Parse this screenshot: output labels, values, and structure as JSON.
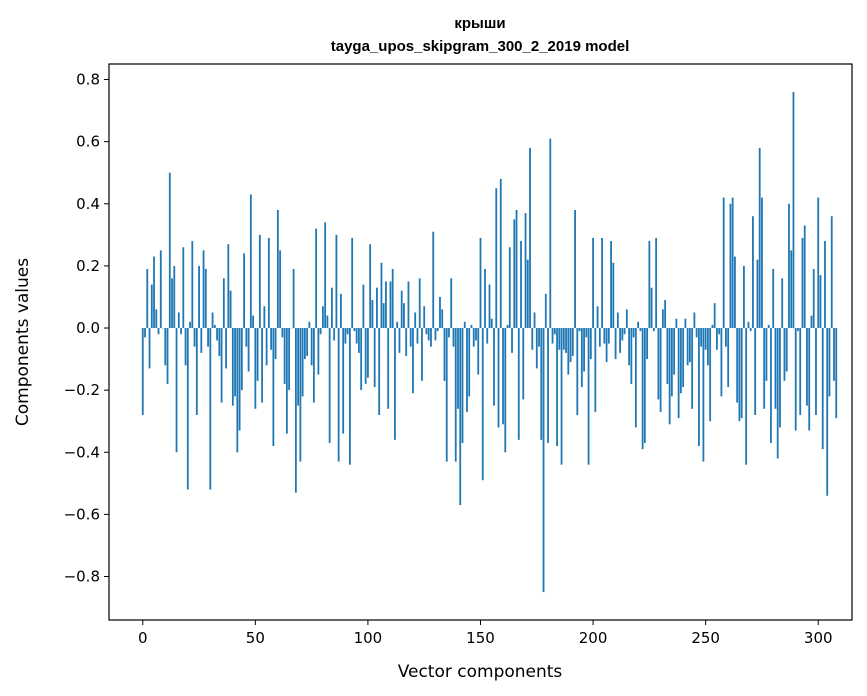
{
  "chart_data": {
    "type": "bar",
    "title": "крыши",
    "subtitle": "tayga_upos_skipgram_300_2_2019 model",
    "xlabel": "Vector components",
    "ylabel": "Components values",
    "xlim": [
      -15,
      315
    ],
    "ylim": [
      -0.94,
      0.85
    ],
    "xticks": [
      0,
      50,
      100,
      150,
      200,
      250,
      300
    ],
    "yticks": [
      -0.8,
      -0.6,
      -0.4,
      -0.2,
      0.0,
      0.2,
      0.4,
      0.6,
      0.8
    ],
    "ytick_labels": [
      "−0.8",
      "−0.6",
      "−0.4",
      "−0.2",
      "0.0",
      "0.2",
      "0.4",
      "0.6",
      "0.8"
    ],
    "color": "#1f77b4",
    "grid": false,
    "values": [
      -0.28,
      -0.03,
      0.19,
      -0.13,
      0.14,
      0.23,
      0.06,
      -0.02,
      0.25,
      0.0,
      -0.12,
      -0.18,
      0.5,
      0.16,
      0.2,
      -0.4,
      0.05,
      -0.02,
      0.26,
      -0.12,
      -0.52,
      0.02,
      0.28,
      -0.06,
      -0.28,
      0.2,
      -0.08,
      0.25,
      0.19,
      -0.06,
      -0.52,
      0.05,
      0.01,
      -0.04,
      -0.09,
      -0.24,
      0.16,
      -0.13,
      0.27,
      0.12,
      -0.25,
      -0.22,
      -0.4,
      -0.33,
      -0.2,
      0.24,
      -0.06,
      -0.14,
      0.43,
      0.04,
      -0.26,
      -0.17,
      0.3,
      -0.24,
      0.07,
      -0.12,
      0.29,
      -0.07,
      -0.38,
      -0.1,
      0.38,
      0.25,
      -0.03,
      -0.18,
      -0.34,
      -0.2,
      0.0,
      0.19,
      -0.53,
      -0.25,
      -0.43,
      -0.22,
      -0.1,
      -0.09,
      0.02,
      -0.12,
      -0.24,
      0.32,
      -0.15,
      -0.02,
      0.07,
      0.34,
      0.04,
      -0.37,
      0.13,
      -0.04,
      0.3,
      -0.43,
      0.11,
      -0.34,
      -0.05,
      -0.02,
      -0.44,
      0.29,
      -0.01,
      -0.05,
      -0.08,
      -0.2,
      0.14,
      -0.18,
      -0.16,
      0.27,
      0.09,
      -0.19,
      0.13,
      -0.28,
      0.21,
      0.08,
      0.15,
      -0.26,
      0.15,
      0.19,
      -0.36,
      0.02,
      -0.08,
      0.12,
      0.08,
      -0.09,
      0.15,
      -0.06,
      -0.21,
      0.05,
      -0.05,
      0.16,
      -0.17,
      0.07,
      -0.02,
      -0.04,
      -0.06,
      0.31,
      -0.04,
      -0.01,
      0.1,
      0.06,
      -0.17,
      -0.43,
      -0.03,
      0.16,
      -0.06,
      -0.43,
      -0.26,
      -0.57,
      -0.37,
      0.02,
      -0.27,
      -0.22,
      0.01,
      -0.06,
      -0.04,
      -0.15,
      0.29,
      -0.49,
      0.19,
      -0.05,
      0.14,
      0.03,
      -0.25,
      0.45,
      -0.32,
      0.48,
      -0.31,
      -0.4,
      0.01,
      0.26,
      -0.08,
      0.35,
      0.38,
      -0.36,
      0.28,
      -0.23,
      0.37,
      0.22,
      0.58,
      -0.07,
      0.05,
      -0.13,
      -0.06,
      -0.36,
      -0.85,
      0.11,
      -0.37,
      0.61,
      -0.05,
      -0.02,
      -0.38,
      -0.07,
      -0.44,
      -0.07,
      -0.08,
      -0.15,
      -0.11,
      -0.09,
      0.38,
      -0.28,
      -0.01,
      -0.19,
      -0.14,
      -0.03,
      -0.44,
      -0.1,
      0.29,
      -0.27,
      0.07,
      -0.06,
      0.29,
      -0.05,
      -0.11,
      -0.05,
      0.28,
      0.21,
      -0.1,
      0.05,
      -0.08,
      -0.04,
      -0.02,
      0.06,
      -0.12,
      -0.18,
      -0.03,
      -0.32,
      0.02,
      -0.01,
      -0.39,
      -0.37,
      -0.1,
      0.28,
      0.13,
      -0.01,
      0.29,
      -0.23,
      -0.27,
      0.06,
      0.09,
      -0.18,
      -0.31,
      -0.22,
      -0.15,
      0.03,
      -0.29,
      -0.21,
      -0.19,
      0.03,
      -0.12,
      -0.11,
      -0.26,
      0.05,
      -0.03,
      -0.38,
      -0.06,
      -0.43,
      -0.07,
      -0.12,
      -0.3,
      0.01,
      0.08,
      -0.07,
      -0.02,
      -0.22,
      0.42,
      -0.06,
      -0.19,
      0.4,
      0.42,
      0.23,
      -0.24,
      -0.3,
      -0.29,
      0.2,
      -0.44,
      0.02,
      -0.01,
      0.36,
      -0.28,
      0.22,
      0.58,
      0.42,
      -0.26,
      -0.17,
      0.01,
      -0.37,
      0.19,
      -0.26,
      -0.42,
      -0.32,
      0.16,
      -0.17,
      -0.14,
      0.4,
      0.25,
      0.76,
      -0.33,
      -0.01,
      -0.28,
      0.29,
      0.33,
      -0.25,
      -0.33,
      0.04,
      0.19,
      -0.28,
      0.42,
      0.17,
      -0.39,
      0.28,
      -0.54,
      -0.22,
      0.36,
      -0.17,
      -0.29
    ]
  }
}
